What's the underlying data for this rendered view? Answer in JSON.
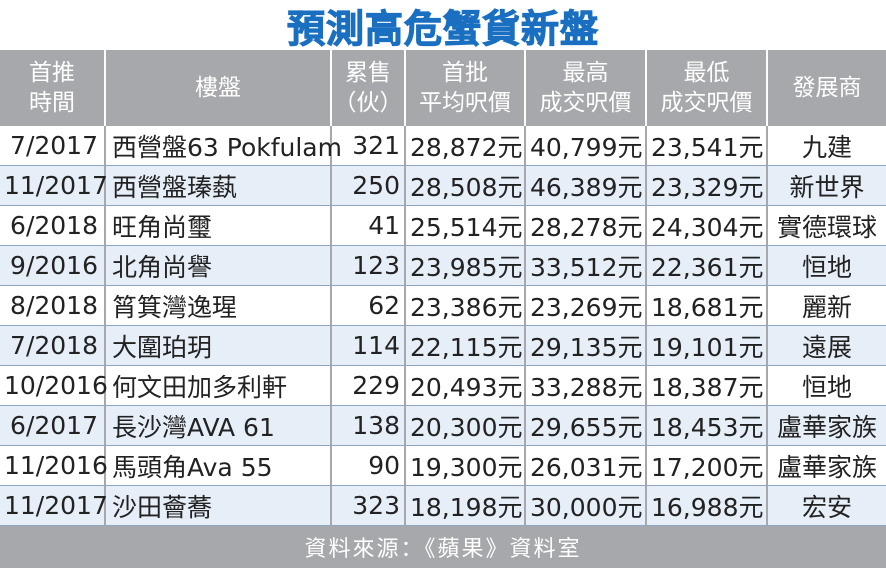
{
  "title": "預測高危蟹貨新盤",
  "headers": {
    "time": [
      "首推",
      "時間"
    ],
    "name": [
      "樓盤"
    ],
    "sold": [
      "累售",
      "（伙）"
    ],
    "first_avg": [
      "首批",
      "平均呎價"
    ],
    "max_price": [
      "最高",
      "成交呎價"
    ],
    "min_price": [
      "最低",
      "成交呎價"
    ],
    "developer": [
      "發展商"
    ]
  },
  "rows": [
    {
      "time": "7/2017",
      "name": "西營盤63 Pokfulam",
      "sold": "321",
      "first_avg": "28,872元",
      "max": "40,799元",
      "min": "23,541元",
      "dev": "九建"
    },
    {
      "time": "11/2017",
      "name": "西營盤瑧蓺",
      "sold": "250",
      "first_avg": "28,508元",
      "max": "46,389元",
      "min": "23,329元",
      "dev": "新世界"
    },
    {
      "time": "6/2018",
      "name": "旺角尚璽",
      "sold": "41",
      "first_avg": "25,514元",
      "max": "28,278元",
      "min": "24,304元",
      "dev": "實德環球"
    },
    {
      "time": "9/2016",
      "name": "北角尚譽",
      "sold": "123",
      "first_avg": "23,985元",
      "max": "33,512元",
      "min": "22,361元",
      "dev": "恒地"
    },
    {
      "time": "8/2018",
      "name": "筲箕灣逸瑆",
      "sold": "62",
      "first_avg": "23,386元",
      "max": "23,269元",
      "min": "18,681元",
      "dev": "麗新"
    },
    {
      "time": "7/2018",
      "name": "大圍珀玥",
      "sold": "114",
      "first_avg": "22,115元",
      "max": "29,135元",
      "min": "19,101元",
      "dev": "遠展"
    },
    {
      "time": "10/2016",
      "name": "何文田加多利軒",
      "sold": "229",
      "first_avg": "20,493元",
      "max": "33,288元",
      "min": "18,387元",
      "dev": "恒地"
    },
    {
      "time": "6/2017",
      "name": "長沙灣AVA 61",
      "sold": "138",
      "first_avg": "20,300元",
      "max": "29,655元",
      "min": "18,453元",
      "dev": "盧華家族"
    },
    {
      "time": "11/2016",
      "name": "馬頭角Ava 55",
      "sold": "90",
      "first_avg": "19,300元",
      "max": "26,031元",
      "min": "17,200元",
      "dev": "盧華家族"
    },
    {
      "time": "11/2017",
      "name": "沙田薈蕎",
      "sold": "323",
      "first_avg": "18,198元",
      "max": "30,000元",
      "min": "16,988元",
      "dev": "宏安"
    }
  ],
  "footer": "資料來源：《蘋果》資料室",
  "colors": {
    "title": "#1a6fc0",
    "header_bg": "#a6a8ab",
    "row_alt": "#e6eef8"
  }
}
